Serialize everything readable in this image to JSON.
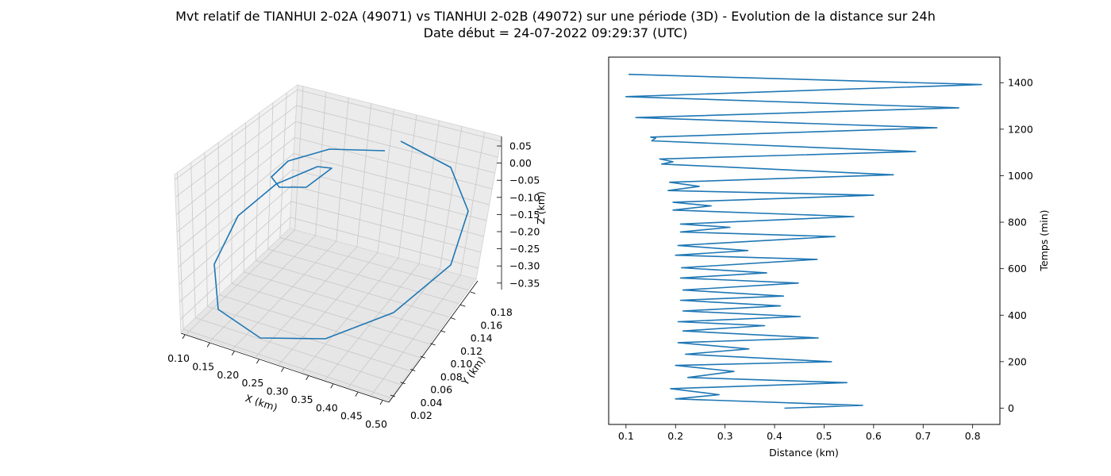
{
  "figure": {
    "title_line1": "Mvt relatif de TIANHUI 2-02A (49071) vs TIANHUI 2-02B (49072) sur une période (3D) - Evolution de la distance sur 24h",
    "title_line2": "Date début = 24-07-2022 09:29:37 (UTC)",
    "line_color": "#1f77b4",
    "pane_color": "#f2f2f2",
    "grid_color": "#c8c8c8"
  },
  "chart_data": [
    {
      "type": "line3d",
      "xlabel": "X (km)",
      "ylabel": "Y (km)",
      "zlabel": "Z (km)",
      "x_ticks": [
        "0.10",
        "0.15",
        "0.20",
        "0.25",
        "0.30",
        "0.35",
        "0.40",
        "0.45",
        "0.50"
      ],
      "y_ticks": [
        "0.02",
        "0.04",
        "0.06",
        "0.08",
        "0.10",
        "0.12",
        "0.14",
        "0.16",
        "0.18"
      ],
      "z_ticks": [
        "0.05",
        "0.00",
        "−0.05",
        "−0.10",
        "−0.15",
        "−0.20",
        "−0.25",
        "−0.30",
        "−0.35"
      ],
      "grid": true
    },
    {
      "type": "line",
      "xlabel": "Distance (km)",
      "ylabel": "Temps (min)",
      "xlim": [
        0.065,
        0.855
      ],
      "ylim": [
        -70,
        1510
      ],
      "x_ticks": [
        "0.1",
        "0.2",
        "0.3",
        "0.4",
        "0.5",
        "0.6",
        "0.7",
        "0.8"
      ],
      "y_ticks": [
        "0",
        "200",
        "400",
        "600",
        "800",
        "1000",
        "1200",
        "1400"
      ],
      "y_axis_side": "right",
      "grid": false,
      "points": [
        [
          0.42,
          0
        ],
        [
          0.578,
          12
        ],
        [
          0.2,
          40
        ],
        [
          0.288,
          58
        ],
        [
          0.19,
          84
        ],
        [
          0.546,
          110
        ],
        [
          0.225,
          132
        ],
        [
          0.318,
          158
        ],
        [
          0.2,
          184
        ],
        [
          0.515,
          200
        ],
        [
          0.22,
          232
        ],
        [
          0.348,
          255
        ],
        [
          0.205,
          282
        ],
        [
          0.488,
          302
        ],
        [
          0.215,
          332
        ],
        [
          0.38,
          355
        ],
        [
          0.205,
          372
        ],
        [
          0.452,
          394
        ],
        [
          0.215,
          418
        ],
        [
          0.412,
          440
        ],
        [
          0.21,
          464
        ],
        [
          0.418,
          482
        ],
        [
          0.215,
          508
        ],
        [
          0.448,
          538
        ],
        [
          0.21,
          560
        ],
        [
          0.384,
          582
        ],
        [
          0.212,
          604
        ],
        [
          0.486,
          640
        ],
        [
          0.2,
          658
        ],
        [
          0.346,
          678
        ],
        [
          0.205,
          700
        ],
        [
          0.522,
          738
        ],
        [
          0.21,
          758
        ],
        [
          0.31,
          778
        ],
        [
          0.21,
          792
        ],
        [
          0.56,
          824
        ],
        [
          0.195,
          852
        ],
        [
          0.272,
          870
        ],
        [
          0.195,
          886
        ],
        [
          0.6,
          916
        ],
        [
          0.185,
          936
        ],
        [
          0.248,
          954
        ],
        [
          0.188,
          972
        ],
        [
          0.64,
          1004
        ],
        [
          0.172,
          1050
        ],
        [
          0.195,
          1060
        ],
        [
          0.168,
          1072
        ],
        [
          0.685,
          1104
        ],
        [
          0.152,
          1150
        ],
        [
          0.16,
          1162
        ],
        [
          0.15,
          1166
        ],
        [
          0.728,
          1206
        ],
        [
          0.12,
          1250
        ],
        [
          0.772,
          1292
        ],
        [
          0.1,
          1340
        ],
        [
          0.818,
          1392
        ],
        [
          0.105,
          1436
        ]
      ]
    }
  ]
}
